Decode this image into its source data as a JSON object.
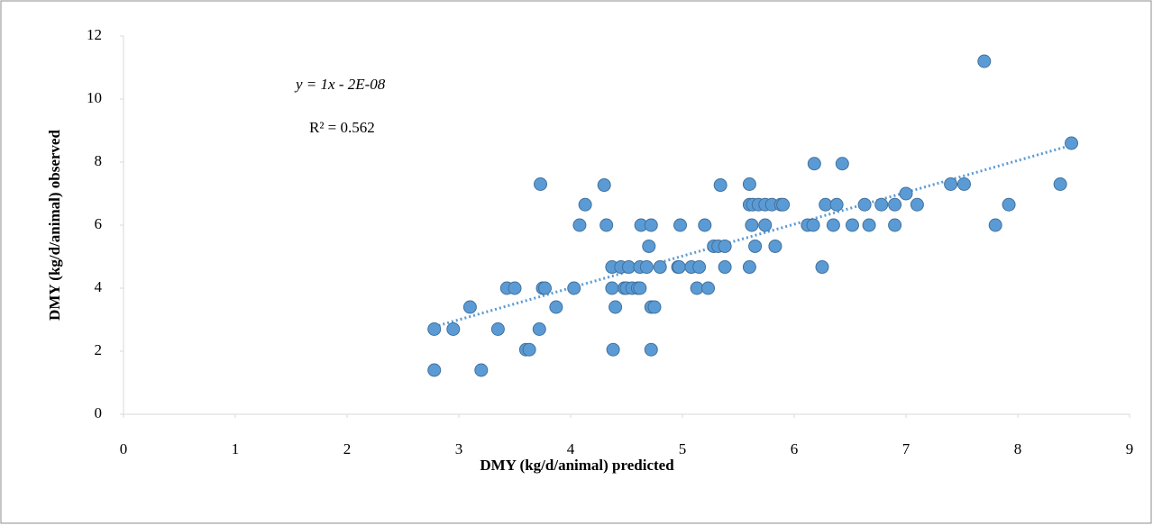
{
  "chart_data": {
    "type": "scatter",
    "xlabel": "DMY (kg/d/animal) predicted",
    "ylabel": "DMY (kg/d/animal) observed",
    "equation": "y = 1x - 2E-08",
    "r_squared": "R² = 0.562",
    "color": "#5b9bd5",
    "trendline_color": "#5b9bd5",
    "x": [
      2.78,
      3.2,
      2.78,
      2.95,
      3.35,
      3.72,
      3.1,
      3.87,
      4.4,
      4.72,
      4.75,
      3.6,
      3.63,
      4.38,
      4.72,
      3.43,
      3.5,
      3.75,
      3.77,
      4.03,
      4.37,
      4.48,
      4.5,
      4.55,
      4.6,
      4.62,
      5.13,
      5.23,
      4.37,
      4.45,
      4.52,
      4.62,
      4.68,
      4.8,
      4.96,
      4.97,
      5.08,
      5.15,
      5.38,
      5.6,
      6.25,
      4.7,
      5.28,
      5.32,
      5.38,
      5.65,
      5.83,
      4.08,
      4.32,
      4.63,
      4.72,
      4.98,
      5.2,
      5.62,
      5.74,
      6.12,
      6.17,
      6.35,
      6.52,
      6.67,
      6.9,
      7.8,
      4.13,
      5.6,
      5.63,
      5.68,
      5.74,
      5.8,
      5.88,
      5.9,
      6.28,
      6.38,
      6.63,
      6.78,
      6.9,
      7.1,
      7.92,
      7.0,
      3.73,
      4.3,
      5.34,
      5.6,
      7.4,
      7.52,
      8.38,
      6.18,
      6.43,
      8.48,
      7.7
    ],
    "values": [
      1.4,
      1.4,
      2.7,
      2.7,
      2.7,
      2.7,
      3.4,
      3.4,
      3.4,
      3.4,
      3.4,
      2.05,
      2.05,
      2.05,
      2.05,
      4.0,
      4.0,
      4.0,
      4.0,
      4.0,
      4.0,
      4.0,
      4.0,
      4.0,
      4.0,
      4.0,
      4.0,
      4.0,
      4.67,
      4.67,
      4.67,
      4.67,
      4.67,
      4.67,
      4.67,
      4.67,
      4.67,
      4.67,
      4.67,
      4.67,
      4.67,
      5.33,
      5.33,
      5.33,
      5.33,
      5.33,
      5.33,
      6.0,
      6.0,
      6.0,
      6.0,
      6.0,
      6.0,
      6.0,
      6.0,
      6.0,
      6.0,
      6.0,
      6.0,
      6.0,
      6.0,
      6.0,
      6.65,
      6.65,
      6.65,
      6.65,
      6.65,
      6.65,
      6.65,
      6.65,
      6.65,
      6.65,
      6.65,
      6.65,
      6.65,
      6.65,
      6.65,
      7.0,
      7.3,
      7.27,
      7.27,
      7.3,
      7.3,
      7.3,
      7.3,
      7.95,
      7.95,
      8.6,
      11.2
    ],
    "xlim": [
      0,
      9
    ],
    "xticks": [
      0,
      1,
      2,
      3,
      4,
      5,
      6,
      7,
      8,
      9
    ],
    "ylim": [
      0,
      12
    ],
    "yticks": [
      0,
      2,
      4,
      6,
      8,
      10,
      12
    ]
  }
}
